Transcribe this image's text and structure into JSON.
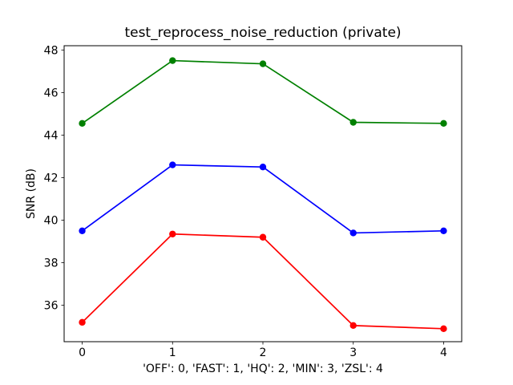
{
  "figure": {
    "background": "#ffffff",
    "frame_color": "#000000"
  },
  "chart_data": {
    "type": "line",
    "title": "test_reprocess_noise_reduction (private)",
    "xlabel": "'OFF': 0, 'FAST': 1, 'HQ': 2, 'MIN': 3, 'ZSL': 4",
    "ylabel": "SNR (dB)",
    "x": [
      0,
      1,
      2,
      3,
      4
    ],
    "xtick_labels": [
      "0",
      "1",
      "2",
      "3",
      "4"
    ],
    "yticks": [
      36,
      38,
      40,
      42,
      44,
      46,
      48
    ],
    "xlim": [
      -0.2,
      4.2
    ],
    "ylim": [
      34.29,
      48.2
    ],
    "grid": false,
    "legend_position": "none",
    "marker": "o",
    "series": [
      {
        "name": "green-series",
        "color": "#008000",
        "values": [
          44.55,
          47.5,
          47.35,
          44.6,
          44.55
        ]
      },
      {
        "name": "blue-series",
        "color": "#0000ff",
        "values": [
          39.5,
          42.6,
          42.5,
          39.4,
          39.5
        ]
      },
      {
        "name": "red-series",
        "color": "#ff0000",
        "values": [
          35.2,
          39.35,
          39.2,
          35.05,
          34.9
        ]
      }
    ]
  }
}
